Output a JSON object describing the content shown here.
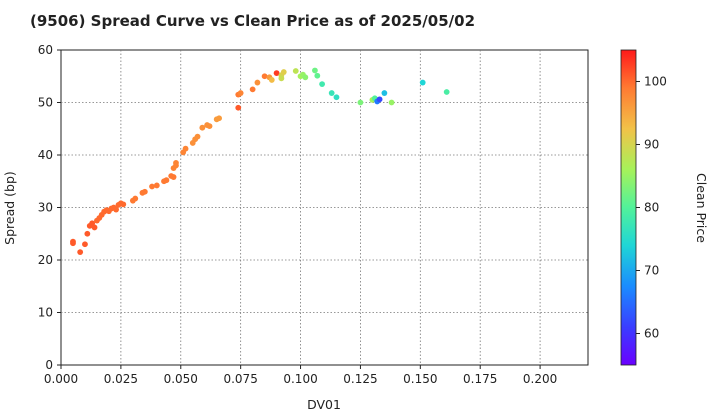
{
  "chart_data": {
    "type": "scatter",
    "title": "(9506)   Spread Curve vs Clean Price as of 2025/05/02",
    "xlabel": "DV01",
    "ylabel": "Spread (bp)",
    "colorbar_label": "Clean Price",
    "xlim": [
      0.0,
      0.22
    ],
    "ylim": [
      0,
      60
    ],
    "clim": [
      55,
      105
    ],
    "grid": true,
    "x_ticks": [
      "0.000",
      "0.025",
      "0.050",
      "0.075",
      "0.100",
      "0.125",
      "0.150",
      "0.175",
      "0.200"
    ],
    "y_ticks": [
      "0",
      "10",
      "20",
      "30",
      "40",
      "50",
      "60"
    ],
    "colorbar_ticks": [
      "60",
      "70",
      "80",
      "90",
      "100"
    ],
    "points": [
      {
        "x": 0.005,
        "y": 23.5,
        "c": 101
      },
      {
        "x": 0.005,
        "y": 23.2,
        "c": 101
      },
      {
        "x": 0.008,
        "y": 21.5,
        "c": 101
      },
      {
        "x": 0.01,
        "y": 23.0,
        "c": 101
      },
      {
        "x": 0.011,
        "y": 25.0,
        "c": 101
      },
      {
        "x": 0.012,
        "y": 26.5,
        "c": 101
      },
      {
        "x": 0.013,
        "y": 27.0,
        "c": 101
      },
      {
        "x": 0.014,
        "y": 26.2,
        "c": 101
      },
      {
        "x": 0.015,
        "y": 27.5,
        "c": 100
      },
      {
        "x": 0.016,
        "y": 28.0,
        "c": 100
      },
      {
        "x": 0.017,
        "y": 28.6,
        "c": 100
      },
      {
        "x": 0.018,
        "y": 29.2,
        "c": 100
      },
      {
        "x": 0.019,
        "y": 29.5,
        "c": 100
      },
      {
        "x": 0.02,
        "y": 29.3,
        "c": 100
      },
      {
        "x": 0.021,
        "y": 29.8,
        "c": 100
      },
      {
        "x": 0.022,
        "y": 30.0,
        "c": 100
      },
      {
        "x": 0.023,
        "y": 29.6,
        "c": 100
      },
      {
        "x": 0.024,
        "y": 30.5,
        "c": 100
      },
      {
        "x": 0.025,
        "y": 30.8,
        "c": 100
      },
      {
        "x": 0.026,
        "y": 30.6,
        "c": 100
      },
      {
        "x": 0.03,
        "y": 31.3,
        "c": 99
      },
      {
        "x": 0.031,
        "y": 31.7,
        "c": 99
      },
      {
        "x": 0.034,
        "y": 32.8,
        "c": 99
      },
      {
        "x": 0.035,
        "y": 33.0,
        "c": 99
      },
      {
        "x": 0.038,
        "y": 34.0,
        "c": 99
      },
      {
        "x": 0.04,
        "y": 34.2,
        "c": 99
      },
      {
        "x": 0.043,
        "y": 35.0,
        "c": 99
      },
      {
        "x": 0.044,
        "y": 35.2,
        "c": 99
      },
      {
        "x": 0.046,
        "y": 36.0,
        "c": 99
      },
      {
        "x": 0.047,
        "y": 35.8,
        "c": 99
      },
      {
        "x": 0.047,
        "y": 37.5,
        "c": 98
      },
      {
        "x": 0.048,
        "y": 38.5,
        "c": 98
      },
      {
        "x": 0.048,
        "y": 38.0,
        "c": 98
      },
      {
        "x": 0.051,
        "y": 40.5,
        "c": 98
      },
      {
        "x": 0.052,
        "y": 41.2,
        "c": 98
      },
      {
        "x": 0.055,
        "y": 42.3,
        "c": 97
      },
      {
        "x": 0.056,
        "y": 43.0,
        "c": 97
      },
      {
        "x": 0.057,
        "y": 43.5,
        "c": 97
      },
      {
        "x": 0.059,
        "y": 45.2,
        "c": 97
      },
      {
        "x": 0.061,
        "y": 45.7,
        "c": 97
      },
      {
        "x": 0.062,
        "y": 45.5,
        "c": 97
      },
      {
        "x": 0.065,
        "y": 46.8,
        "c": 96
      },
      {
        "x": 0.066,
        "y": 47.0,
        "c": 96
      },
      {
        "x": 0.074,
        "y": 49.0,
        "c": 101
      },
      {
        "x": 0.074,
        "y": 51.5,
        "c": 99
      },
      {
        "x": 0.075,
        "y": 51.8,
        "c": 98
      },
      {
        "x": 0.08,
        "y": 52.5,
        "c": 99
      },
      {
        "x": 0.082,
        "y": 53.8,
        "c": 97
      },
      {
        "x": 0.085,
        "y": 55.0,
        "c": 99
      },
      {
        "x": 0.087,
        "y": 54.8,
        "c": 96
      },
      {
        "x": 0.088,
        "y": 54.3,
        "c": 93
      },
      {
        "x": 0.09,
        "y": 55.6,
        "c": 103
      },
      {
        "x": 0.092,
        "y": 55.2,
        "c": 90
      },
      {
        "x": 0.092,
        "y": 54.6,
        "c": 89
      },
      {
        "x": 0.093,
        "y": 55.8,
        "c": 91
      },
      {
        "x": 0.098,
        "y": 56.0,
        "c": 88
      },
      {
        "x": 0.1,
        "y": 55.0,
        "c": 86
      },
      {
        "x": 0.101,
        "y": 55.3,
        "c": 85
      },
      {
        "x": 0.102,
        "y": 54.8,
        "c": 84
      },
      {
        "x": 0.106,
        "y": 56.1,
        "c": 82
      },
      {
        "x": 0.107,
        "y": 55.1,
        "c": 81
      },
      {
        "x": 0.109,
        "y": 53.5,
        "c": 78
      },
      {
        "x": 0.113,
        "y": 51.8,
        "c": 77
      },
      {
        "x": 0.115,
        "y": 51.0,
        "c": 76
      },
      {
        "x": 0.125,
        "y": 50.0,
        "c": 83
      },
      {
        "x": 0.13,
        "y": 50.5,
        "c": 86
      },
      {
        "x": 0.131,
        "y": 50.8,
        "c": 80
      },
      {
        "x": 0.132,
        "y": 50.2,
        "c": 66
      },
      {
        "x": 0.133,
        "y": 50.6,
        "c": 62
      },
      {
        "x": 0.135,
        "y": 51.8,
        "c": 72
      },
      {
        "x": 0.138,
        "y": 50.0,
        "c": 85
      },
      {
        "x": 0.151,
        "y": 53.8,
        "c": 74
      },
      {
        "x": 0.161,
        "y": 52.0,
        "c": 79
      }
    ]
  }
}
